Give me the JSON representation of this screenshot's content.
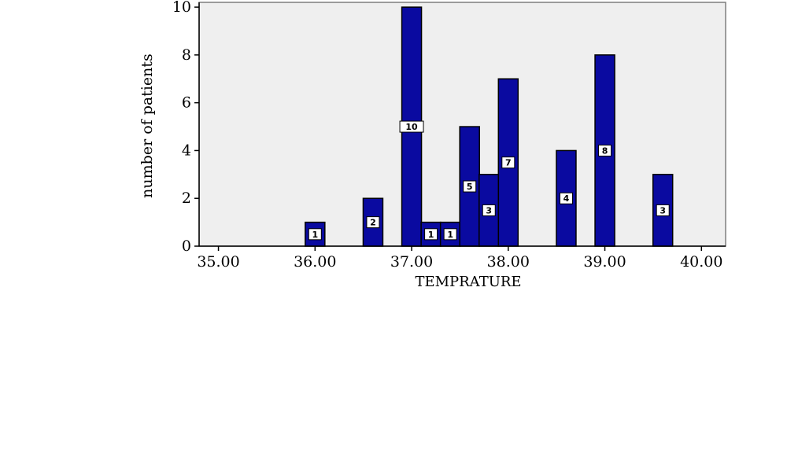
{
  "chart_data": {
    "type": "bar",
    "title": "",
    "xlabel": "TEMPRATURE",
    "ylabel": "number of patients",
    "xlim": [
      34.8,
      40.25
    ],
    "ylim": [
      0,
      10.2
    ],
    "x_ticks": [
      "35.00",
      "36.00",
      "37.00",
      "38.00",
      "39.00",
      "40.00"
    ],
    "y_ticks": [
      "0",
      "2",
      "4",
      "6",
      "8",
      "10"
    ],
    "grid": false,
    "bar_color": "#0a0aa0",
    "plot_background": "#efefef",
    "bars": [
      {
        "x": 36.0,
        "value": 1,
        "label": "1"
      },
      {
        "x": 36.6,
        "value": 2,
        "label": "2"
      },
      {
        "x": 37.0,
        "value": 10,
        "label": "10"
      },
      {
        "x": 37.2,
        "value": 1,
        "label": "1"
      },
      {
        "x": 37.4,
        "value": 1,
        "label": "1"
      },
      {
        "x": 37.6,
        "value": 5,
        "label": "5"
      },
      {
        "x": 37.8,
        "value": 3,
        "label": "3"
      },
      {
        "x": 38.0,
        "value": 7,
        "label": "7"
      },
      {
        "x": 38.6,
        "value": 4,
        "label": "4"
      },
      {
        "x": 39.0,
        "value": 8,
        "label": "8"
      },
      {
        "x": 39.6,
        "value": 3,
        "label": "3"
      }
    ]
  }
}
